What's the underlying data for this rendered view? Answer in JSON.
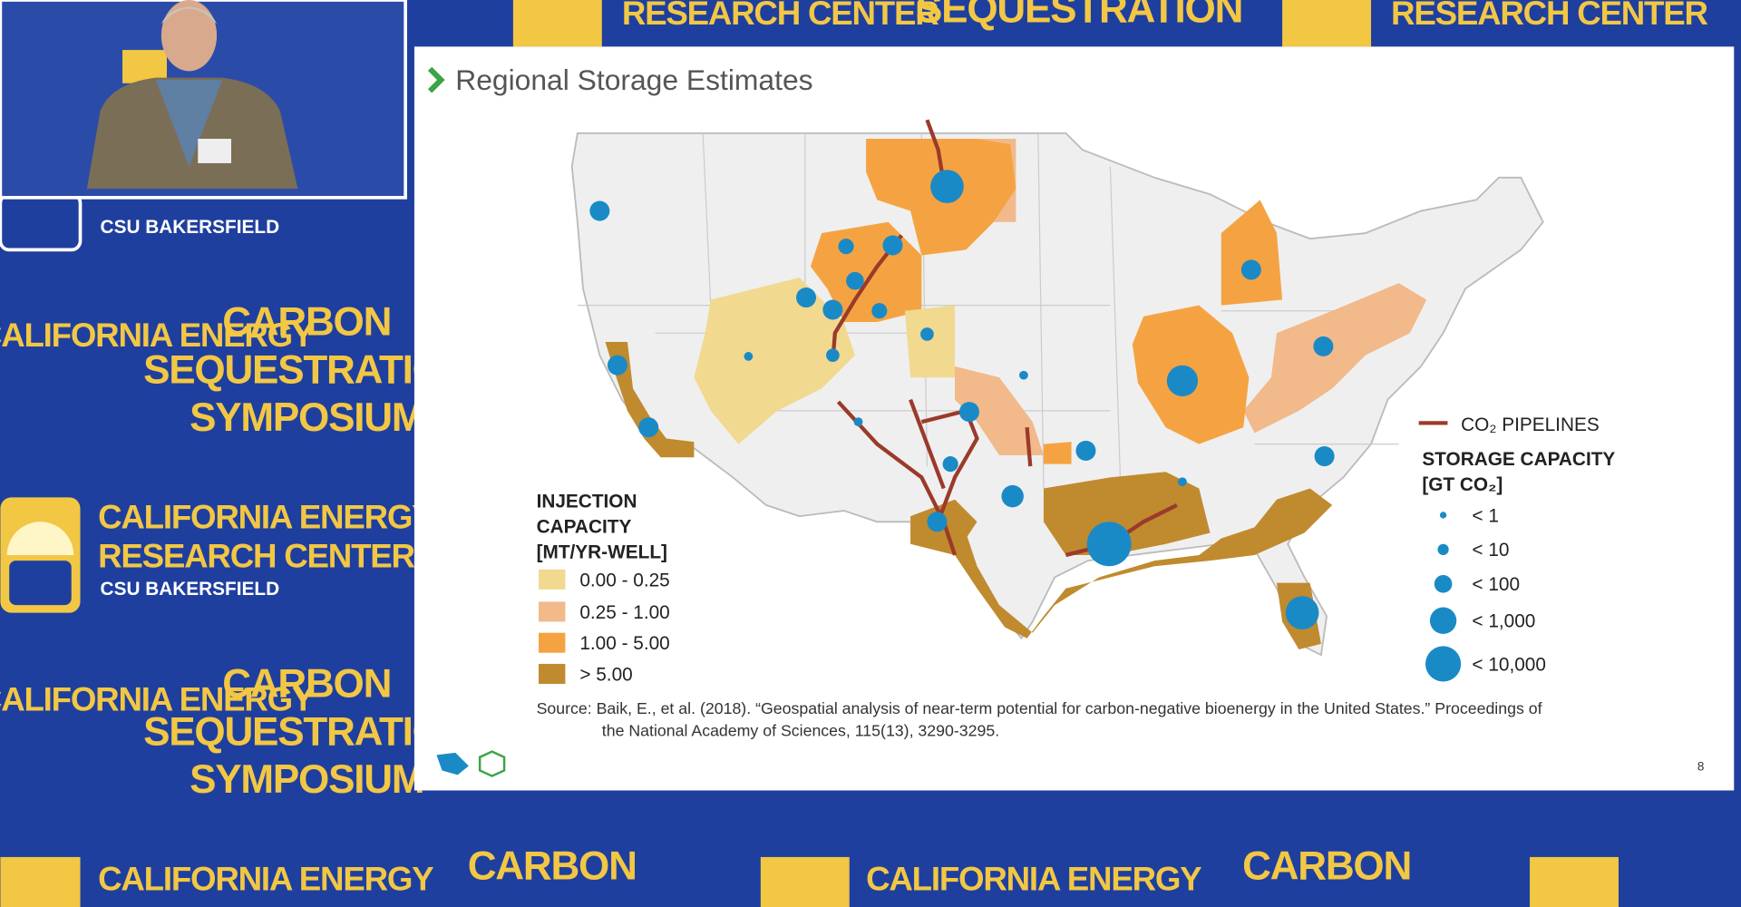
{
  "backdrop": {
    "event_lines": [
      "CARBON",
      "SEQUESTRATION",
      "SYMPOSIUM"
    ],
    "center_lines": [
      "CALIFORNIA ENERGY",
      "RESEARCH CENTER",
      "CSU BAKERSFIELD"
    ]
  },
  "slide": {
    "title": "Regional Storage Estimates",
    "injection_legend": {
      "title_lines": [
        "INJECTION",
        "CAPACITY",
        "[MT/YR-WELL]"
      ],
      "items": [
        "0.00 - 0.25",
        "0.25 - 1.00",
        "1.00 - 5.00",
        "> 5.00"
      ]
    },
    "pipelines_label": "CO₂ PIPELINES",
    "storage_legend": {
      "title_lines": [
        "STORAGE CAPACITY",
        "[GT CO₂]"
      ],
      "items": [
        "< 1",
        "< 10",
        "< 100",
        "< 1,000",
        "< 10,000"
      ]
    },
    "source_lines": [
      "Source: Baik, E., et al. (2018). “Geospatial analysis of near-term potential for carbon-negative bioenergy in the United States.” Proceedings of",
      "the National Academy of Sciences, 115(13), 3290-3295."
    ],
    "page_number": "8"
  }
}
